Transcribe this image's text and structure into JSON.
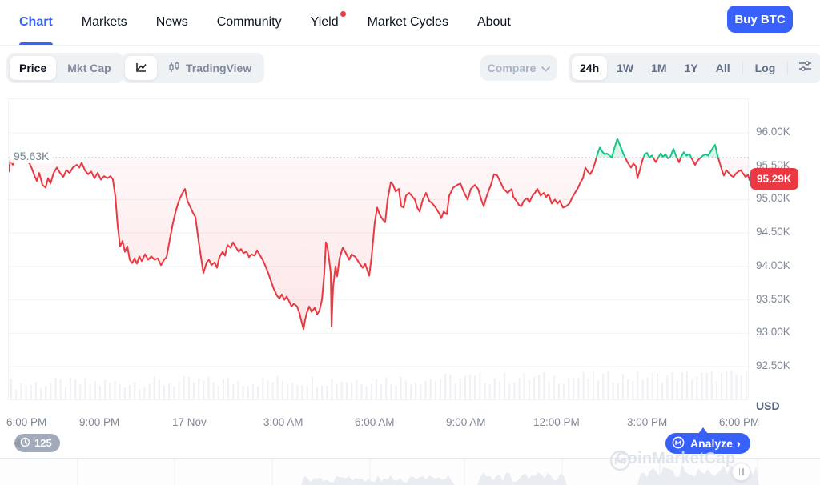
{
  "nav": {
    "items": [
      {
        "label": "Chart",
        "active": true
      },
      {
        "label": "Markets"
      },
      {
        "label": "News"
      },
      {
        "label": "Community"
      },
      {
        "label": "Yield",
        "badge_dot": true
      },
      {
        "label": "Market Cycles"
      },
      {
        "label": "About"
      }
    ],
    "buy_button": "Buy BTC"
  },
  "toolbar": {
    "metric_toggle": {
      "options": [
        "Price",
        "Mkt Cap"
      ],
      "selected": "Price"
    },
    "chart_type_toggle": {
      "selected": "line-chart",
      "tradingview_label": "TradingView"
    },
    "compare": {
      "label": "Compare"
    },
    "range_toggle": {
      "options": [
        "24h",
        "1W",
        "1M",
        "1Y",
        "All"
      ],
      "selected": "24h",
      "log_label": "Log"
    }
  },
  "overlays": {
    "watermark": "CoinMarketCap",
    "history_count": "125",
    "analyze_label": "Analyze",
    "analyze_chevron": "›"
  },
  "colors": {
    "accent": "#3861fb",
    "down": "#ea3943",
    "up": "#16c784"
  },
  "chart_data": {
    "type": "line",
    "ylabel": "USD",
    "x_ticks": [
      "6:00 PM",
      "9:00 PM",
      "17 Nov",
      "3:00 AM",
      "6:00 AM",
      "9:00 AM",
      "12:00 PM",
      "3:00 PM",
      "6:00 PM"
    ],
    "y_ticks": [
      "96.00K",
      "95.50K",
      "95.00K",
      "94.50K",
      "94.00K",
      "93.50K",
      "93.00K",
      "92.50K"
    ],
    "y_tick_values": [
      96.0,
      95.5,
      95.0,
      94.5,
      94.0,
      93.5,
      93.0,
      92.5
    ],
    "open_price": 95.63,
    "open_price_label": "95.63K",
    "last_price": 95.29,
    "last_price_label": "95.29K",
    "line_color_down": "#ea3943",
    "line_color_up": "#16c784",
    "points": [
      [
        0,
        95.42
      ],
      [
        2,
        95.6
      ],
      [
        5,
        95.52
      ],
      [
        8,
        95.7
      ],
      [
        11,
        95.58
      ],
      [
        14,
        95.75
      ],
      [
        17,
        95.62
      ],
      [
        20,
        95.68
      ],
      [
        23,
        95.58
      ],
      [
        26,
        95.54
      ],
      [
        29,
        95.46
      ],
      [
        32,
        95.36
      ],
      [
        35,
        95.28
      ],
      [
        38,
        95.4
      ],
      [
        42,
        95.22
      ],
      [
        46,
        95.18
      ],
      [
        49,
        95.32
      ],
      [
        52,
        95.24
      ],
      [
        56,
        95.4
      ],
      [
        60,
        95.48
      ],
      [
        64,
        95.4
      ],
      [
        68,
        95.34
      ],
      [
        72,
        95.44
      ],
      [
        76,
        95.4
      ],
      [
        80,
        95.48
      ],
      [
        85,
        95.52
      ],
      [
        88,
        95.48
      ],
      [
        91,
        95.55
      ],
      [
        95,
        95.44
      ],
      [
        99,
        95.38
      ],
      [
        103,
        95.42
      ],
      [
        107,
        95.32
      ],
      [
        111,
        95.4
      ],
      [
        115,
        95.3
      ],
      [
        119,
        95.35
      ],
      [
        123,
        95.32
      ],
      [
        127,
        95.35
      ],
      [
        130,
        95.3
      ],
      [
        133,
        95.05
      ],
      [
        136,
        94.6
      ],
      [
        139,
        94.3
      ],
      [
        142,
        94.38
      ],
      [
        145,
        94.22
      ],
      [
        148,
        94.3
      ],
      [
        151,
        94.1
      ],
      [
        154,
        94.05
      ],
      [
        157,
        94.12
      ],
      [
        160,
        94.04
      ],
      [
        163,
        94.15
      ],
      [
        166,
        94.08
      ],
      [
        170,
        94.18
      ],
      [
        174,
        94.1
      ],
      [
        178,
        94.15
      ],
      [
        182,
        94.1
      ],
      [
        186,
        94.12
      ],
      [
        190,
        94.02
      ],
      [
        194,
        94.1
      ],
      [
        197,
        94.14
      ],
      [
        201,
        94.4
      ],
      [
        205,
        94.65
      ],
      [
        209,
        94.85
      ],
      [
        213,
        95.0
      ],
      [
        217,
        95.1
      ],
      [
        220,
        95.16
      ],
      [
        223,
        94.98
      ],
      [
        227,
        94.88
      ],
      [
        230,
        94.8
      ],
      [
        233,
        94.74
      ],
      [
        237,
        94.38
      ],
      [
        240,
        94.14
      ],
      [
        243,
        93.9
      ],
      [
        247,
        94.06
      ],
      [
        250,
        94.1
      ],
      [
        253,
        94.02
      ],
      [
        257,
        94.06
      ],
      [
        260,
        93.98
      ],
      [
        263,
        94.14
      ],
      [
        267,
        94.22
      ],
      [
        270,
        94.16
      ],
      [
        273,
        94.32
      ],
      [
        277,
        94.28
      ],
      [
        280,
        94.36
      ],
      [
        283,
        94.3
      ],
      [
        287,
        94.22
      ],
      [
        290,
        94.26
      ],
      [
        293,
        94.2
      ],
      [
        297,
        94.22
      ],
      [
        300,
        94.14
      ],
      [
        303,
        94.18
      ],
      [
        307,
        94.16
      ],
      [
        310,
        94.24
      ],
      [
        313,
        94.18
      ],
      [
        317,
        94.1
      ],
      [
        320,
        94.02
      ],
      [
        324,
        93.9
      ],
      [
        328,
        93.76
      ],
      [
        331,
        93.66
      ],
      [
        335,
        93.56
      ],
      [
        338,
        93.52
      ],
      [
        341,
        93.58
      ],
      [
        344,
        93.5
      ],
      [
        347,
        93.55
      ],
      [
        350,
        93.48
      ],
      [
        353,
        93.4
      ],
      [
        356,
        93.44
      ],
      [
        360,
        93.4
      ],
      [
        363,
        93.3
      ],
      [
        365,
        93.2
      ],
      [
        368,
        93.06
      ],
      [
        370,
        93.2
      ],
      [
        372,
        93.3
      ],
      [
        375,
        93.4
      ],
      [
        378,
        93.32
      ],
      [
        382,
        93.38
      ],
      [
        385,
        93.28
      ],
      [
        388,
        93.34
      ],
      [
        391,
        93.5
      ],
      [
        394,
        93.9
      ],
      [
        396,
        94.36
      ],
      [
        398,
        94.28
      ],
      [
        400,
        94.1
      ],
      [
        402,
        93.9
      ],
      [
        403,
        93.1
      ],
      [
        405,
        93.7
      ],
      [
        408,
        94.0
      ],
      [
        410,
        93.85
      ],
      [
        413,
        94.12
      ],
      [
        417,
        94.28
      ],
      [
        420,
        94.22
      ],
      [
        425,
        94.1
      ],
      [
        428,
        94.18
      ],
      [
        433,
        94.14
      ],
      [
        437,
        94.06
      ],
      [
        442,
        93.98
      ],
      [
        445,
        94.04
      ],
      [
        450,
        93.86
      ],
      [
        453,
        94.14
      ],
      [
        457,
        94.66
      ],
      [
        460,
        94.88
      ],
      [
        463,
        94.78
      ],
      [
        467,
        94.7
      ],
      [
        470,
        94.66
      ],
      [
        473,
        95.0
      ],
      [
        477,
        95.26
      ],
      [
        480,
        95.22
      ],
      [
        483,
        95.12
      ],
      [
        487,
        95.16
      ],
      [
        490,
        94.9
      ],
      [
        493,
        94.88
      ],
      [
        496,
        95.06
      ],
      [
        500,
        95.1
      ],
      [
        503,
        95.06
      ],
      [
        507,
        95.0
      ],
      [
        510,
        94.88
      ],
      [
        513,
        94.82
      ],
      [
        517,
        95.0
      ],
      [
        521,
        95.1
      ],
      [
        525,
        94.98
      ],
      [
        529,
        94.94
      ],
      [
        533,
        94.88
      ],
      [
        538,
        94.78
      ],
      [
        540,
        94.72
      ],
      [
        543,
        94.82
      ],
      [
        547,
        94.78
      ],
      [
        550,
        95.06
      ],
      [
        555,
        95.18
      ],
      [
        560,
        95.22
      ],
      [
        564,
        95.24
      ],
      [
        568,
        95.12
      ],
      [
        573,
        95.0
      ],
      [
        577,
        95.16
      ],
      [
        582,
        95.22
      ],
      [
        586,
        95.16
      ],
      [
        590,
        95.0
      ],
      [
        593,
        94.9
      ],
      [
        597,
        95.06
      ],
      [
        602,
        95.22
      ],
      [
        606,
        95.38
      ],
      [
        610,
        95.36
      ],
      [
        614,
        95.26
      ],
      [
        618,
        95.16
      ],
      [
        623,
        95.1
      ],
      [
        628,
        95.16
      ],
      [
        630,
        95.04
      ],
      [
        634,
        94.98
      ],
      [
        637,
        94.92
      ],
      [
        640,
        94.9
      ],
      [
        643,
        94.98
      ],
      [
        647,
        95.02
      ],
      [
        650,
        94.96
      ],
      [
        654,
        95.06
      ],
      [
        657,
        95.1
      ],
      [
        660,
        95.16
      ],
      [
        664,
        95.06
      ],
      [
        668,
        95.1
      ],
      [
        671,
        95.04
      ],
      [
        674,
        95.08
      ],
      [
        678,
        94.94
      ],
      [
        682,
        95.0
      ],
      [
        685,
        94.94
      ],
      [
        688,
        94.98
      ],
      [
        692,
        94.88
      ],
      [
        696,
        94.9
      ],
      [
        700,
        94.94
      ],
      [
        704,
        95.04
      ],
      [
        708,
        95.12
      ],
      [
        711,
        95.18
      ],
      [
        714,
        95.26
      ],
      [
        717,
        95.32
      ],
      [
        720,
        95.48
      ],
      [
        723,
        95.42
      ],
      [
        726,
        95.38
      ],
      [
        729,
        95.44
      ],
      [
        732,
        95.55
      ],
      [
        735,
        95.68
      ],
      [
        738,
        95.78
      ],
      [
        741,
        95.72
      ],
      [
        744,
        95.68
      ],
      [
        747,
        95.69
      ],
      [
        750,
        95.66
      ],
      [
        753,
        95.63
      ],
      [
        756,
        95.76
      ],
      [
        760,
        95.91
      ],
      [
        763,
        95.82
      ],
      [
        767,
        95.7
      ],
      [
        770,
        95.62
      ],
      [
        773,
        95.55
      ],
      [
        777,
        95.48
      ],
      [
        780,
        95.54
      ],
      [
        783,
        95.5
      ],
      [
        785,
        95.32
      ],
      [
        788,
        95.44
      ],
      [
        791,
        95.58
      ],
      [
        794,
        95.68
      ],
      [
        797,
        95.7
      ],
      [
        800,
        95.63
      ],
      [
        803,
        95.66
      ],
      [
        806,
        95.6
      ],
      [
        808,
        95.56
      ],
      [
        811,
        95.63
      ],
      [
        814,
        95.69
      ],
      [
        817,
        95.64
      ],
      [
        820,
        95.68
      ],
      [
        823,
        95.62
      ],
      [
        826,
        95.64
      ],
      [
        830,
        95.76
      ],
      [
        833,
        95.66
      ],
      [
        837,
        95.56
      ],
      [
        840,
        95.65
      ],
      [
        843,
        95.71
      ],
      [
        846,
        95.66
      ],
      [
        850,
        95.68
      ],
      [
        853,
        95.61
      ],
      [
        857,
        95.52
      ],
      [
        860,
        95.58
      ],
      [
        863,
        95.62
      ],
      [
        867,
        95.66
      ],
      [
        870,
        95.68
      ],
      [
        873,
        95.66
      ],
      [
        876,
        95.71
      ],
      [
        879,
        95.77
      ],
      [
        882,
        95.82
      ],
      [
        885,
        95.66
      ],
      [
        888,
        95.54
      ],
      [
        891,
        95.42
      ],
      [
        893,
        95.36
      ],
      [
        896,
        95.44
      ],
      [
        899,
        95.4
      ],
      [
        902,
        95.36
      ],
      [
        905,
        95.34
      ],
      [
        908,
        95.39
      ],
      [
        911,
        95.42
      ],
      [
        914,
        95.44
      ],
      [
        917,
        95.39
      ],
      [
        920,
        95.34
      ],
      [
        923,
        95.37
      ],
      [
        925,
        95.29
      ]
    ]
  }
}
